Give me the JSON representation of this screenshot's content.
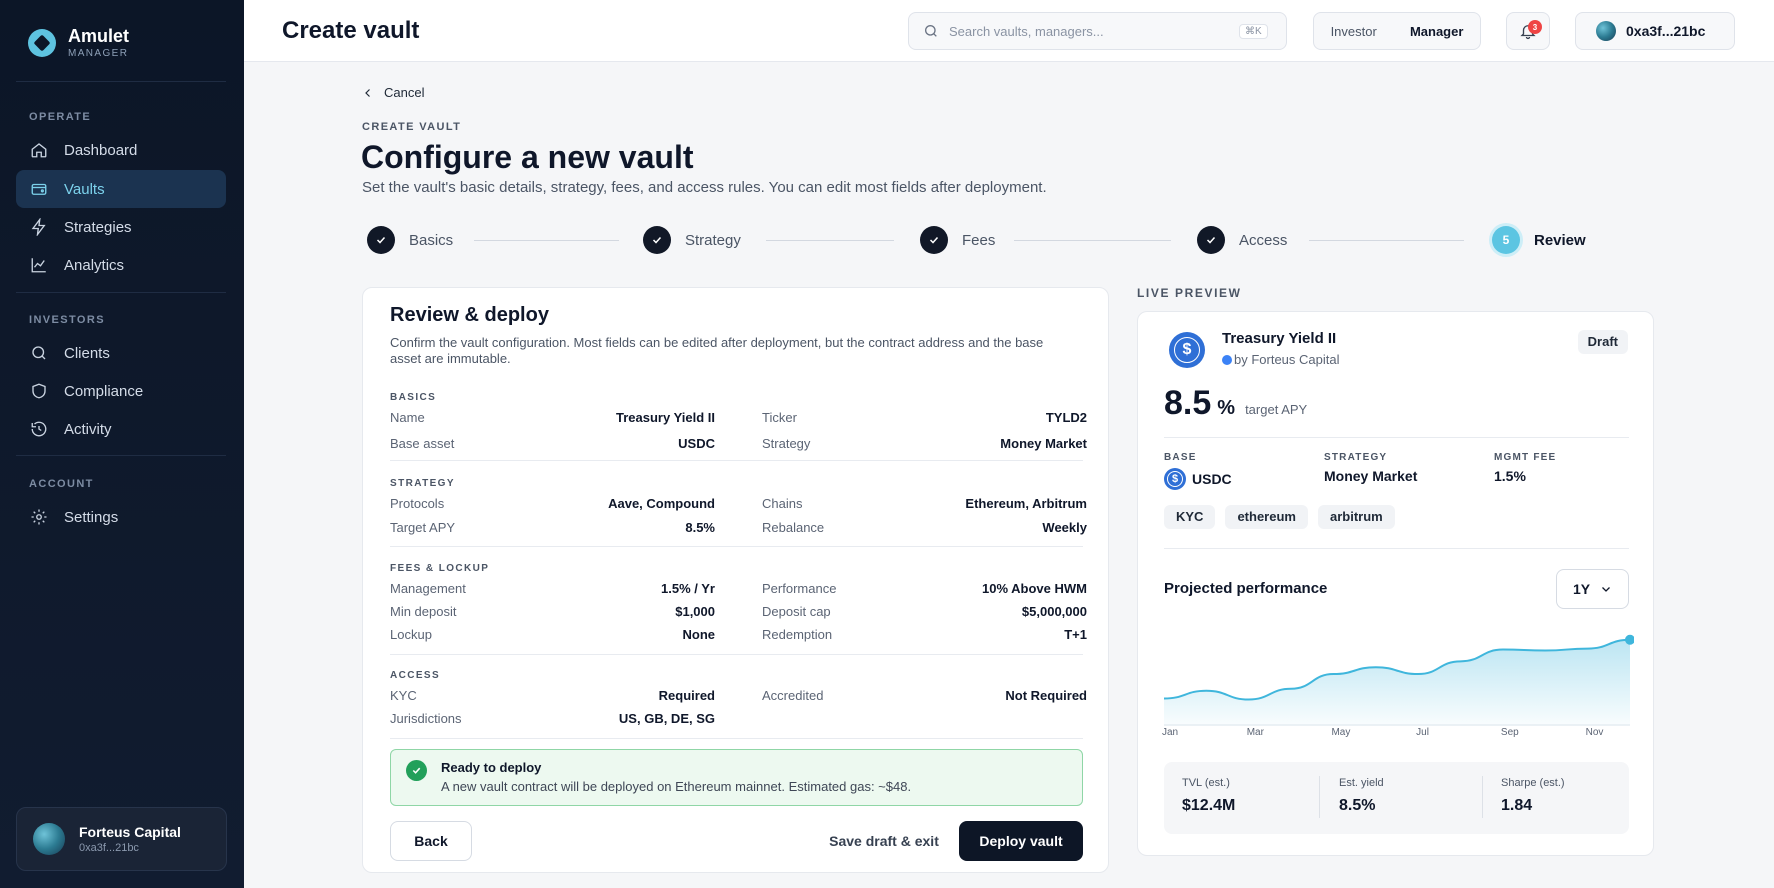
{
  "sidebar": {
    "brand_name": "Amulet",
    "brand_sub": "MANAGER",
    "sections": [
      "OPERATE",
      "INVESTORS",
      "ACCOUNT"
    ],
    "items": [
      {
        "label": "Dashboard",
        "icon": "home-icon"
      },
      {
        "label": "Vaults",
        "icon": "wallet-icon",
        "active": true
      },
      {
        "label": "Strategies",
        "icon": "bolt-icon"
      },
      {
        "label": "Analytics",
        "icon": "chart-line-icon"
      },
      {
        "label": "Clients",
        "icon": "search-icon"
      },
      {
        "label": "Compliance",
        "icon": "shield-icon"
      },
      {
        "label": "Activity",
        "icon": "history-icon"
      },
      {
        "label": "Settings",
        "icon": "gear-icon"
      }
    ],
    "org": {
      "name": "Forteus Capital",
      "address": "0xa3f...21bc"
    }
  },
  "header": {
    "title": "Create vault",
    "search_placeholder": "Search vaults, managers...",
    "search_shortcut": "⌘K",
    "roles": [
      "Investor",
      "Manager"
    ],
    "selected_role": "Manager",
    "notification_count": "3",
    "wallet_address": "0xa3f...21bc"
  },
  "main": {
    "cancel_label": "Cancel",
    "eyebrow": "CREATE VAULT",
    "title": "Configure a new vault",
    "subtitle": "Set the vault's basic details, strategy, fees, and access rules. You can edit most fields after deployment."
  },
  "steps": [
    {
      "label": "Basics",
      "status": "done"
    },
    {
      "label": "Strategy",
      "status": "done"
    },
    {
      "label": "Fees",
      "status": "done"
    },
    {
      "label": "Access",
      "status": "done"
    },
    {
      "label": "Review",
      "status": "current",
      "number": "5"
    }
  ],
  "review": {
    "title": "Review & deploy",
    "description": "Confirm the vault configuration. Most fields can be edited after deployment, but the contract address and the base asset are immutable.",
    "sections": {
      "basics": {
        "label": "BASICS",
        "left": [
          {
            "k": "Name",
            "v": "Treasury Yield II"
          },
          {
            "k": "Base asset",
            "v": "USDC"
          }
        ],
        "right": [
          {
            "k": "Ticker",
            "v": "TYLD2"
          },
          {
            "k": "Strategy",
            "v": "Money Market"
          }
        ]
      },
      "strategy": {
        "label": "STRATEGY",
        "left": [
          {
            "k": "Protocols",
            "v": "Aave, Compound"
          },
          {
            "k": "Target APY",
            "v": "8.5%"
          }
        ],
        "right": [
          {
            "k": "Chains",
            "v": "Ethereum, Arbitrum"
          },
          {
            "k": "Rebalance",
            "v": "Weekly"
          }
        ]
      },
      "fees": {
        "label": "FEES & LOCKUP",
        "left": [
          {
            "k": "Management",
            "v": "1.5% / Yr"
          },
          {
            "k": "Min deposit",
            "v": "$1,000"
          },
          {
            "k": "Lockup",
            "v": "None"
          }
        ],
        "right": [
          {
            "k": "Performance",
            "v": "10% Above HWM"
          },
          {
            "k": "Deposit cap",
            "v": "$5,000,000"
          },
          {
            "k": "Redemption",
            "v": "T+1"
          }
        ]
      },
      "access": {
        "label": "ACCESS",
        "left": [
          {
            "k": "KYC",
            "v": "Required"
          },
          {
            "k": "Jurisdictions",
            "v": "US, GB, DE, SG"
          }
        ],
        "right": [
          {
            "k": "Accredited",
            "v": "Not Required"
          }
        ]
      }
    },
    "deploy_notice": {
      "title": "Ready to deploy",
      "text": "A new vault contract will be deployed on Ethereum mainnet. Estimated gas: ~$48."
    },
    "buttons": {
      "back": "Back",
      "save_draft": "Save draft & exit",
      "deploy": "Deploy vault"
    }
  },
  "preview": {
    "label": "LIVE PREVIEW",
    "vault_name": "Treasury Yield II",
    "by_line": "by Forteus Capital",
    "status": "Draft",
    "apy_value": "8.5",
    "apy_unit": "%",
    "apy_label": "target APY",
    "base_label": "BASE",
    "base_value": "USDC",
    "strategy_label": "STRATEGY",
    "strategy_value": "Money Market",
    "fee_label": "MGMT FEE",
    "fee_value": "1.5%",
    "tags": [
      "KYC",
      "ethereum",
      "arbitrum"
    ],
    "performance_title": "Projected performance",
    "period": "1Y",
    "stats": [
      {
        "label": "TVL (est.)",
        "value": "$12.4M"
      },
      {
        "label": "Est. yield",
        "value": "8.5%"
      },
      {
        "label": "Sharpe (est.)",
        "value": "1.84"
      }
    ]
  },
  "chart_data": {
    "type": "area",
    "x": [
      "Jan",
      "Feb",
      "Mar",
      "Apr",
      "May",
      "Jun",
      "Jul",
      "Aug",
      "Sep",
      "Oct",
      "Nov",
      "Dec"
    ],
    "x_tick_labels": [
      "Jan",
      "Mar",
      "May",
      "Jul",
      "Sep",
      "Nov"
    ],
    "values": [
      0.28,
      0.36,
      0.27,
      0.38,
      0.53,
      0.6,
      0.53,
      0.66,
      0.78,
      0.77,
      0.79,
      0.88
    ],
    "ylim": [
      0,
      1
    ],
    "grid": false,
    "accent": "#3fb6dc"
  }
}
